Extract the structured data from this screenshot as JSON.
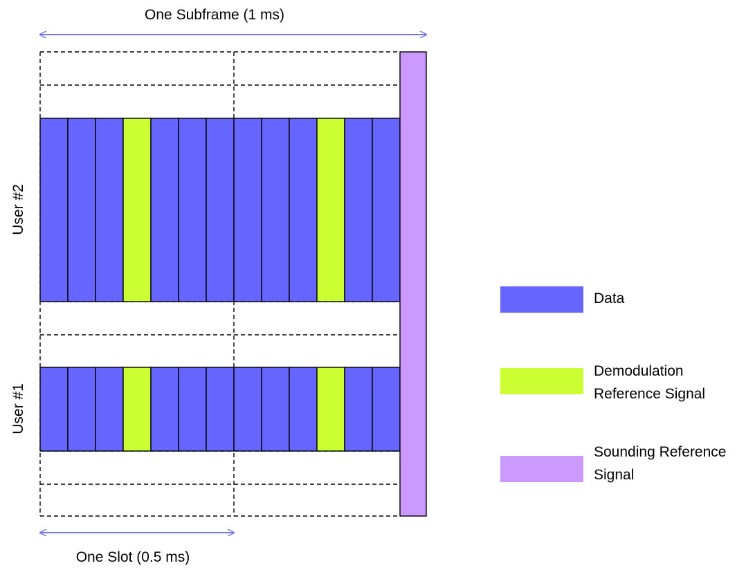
{
  "subframe_label": "One Subframe (1 ms)",
  "slot_label": "One Slot (0.5 ms)",
  "users": [
    {
      "label": "User #2"
    },
    {
      "label": "User #1"
    }
  ],
  "symbols_per_subframe": 14,
  "dmrs_symbol_indices": [
    3,
    10
  ],
  "srs_symbol_index": 13,
  "colors": {
    "data": "#6666ff",
    "dmrs": "#ccff33",
    "srs": "#cc99ff",
    "arrow": "#7777ee"
  },
  "legend": [
    {
      "key": "data",
      "lines": [
        "Data"
      ]
    },
    {
      "key": "dmrs",
      "lines": [
        "Demodulation",
        "Reference Signal"
      ]
    },
    {
      "key": "srs",
      "lines": [
        "Sounding Reference",
        "Signal"
      ]
    }
  ]
}
